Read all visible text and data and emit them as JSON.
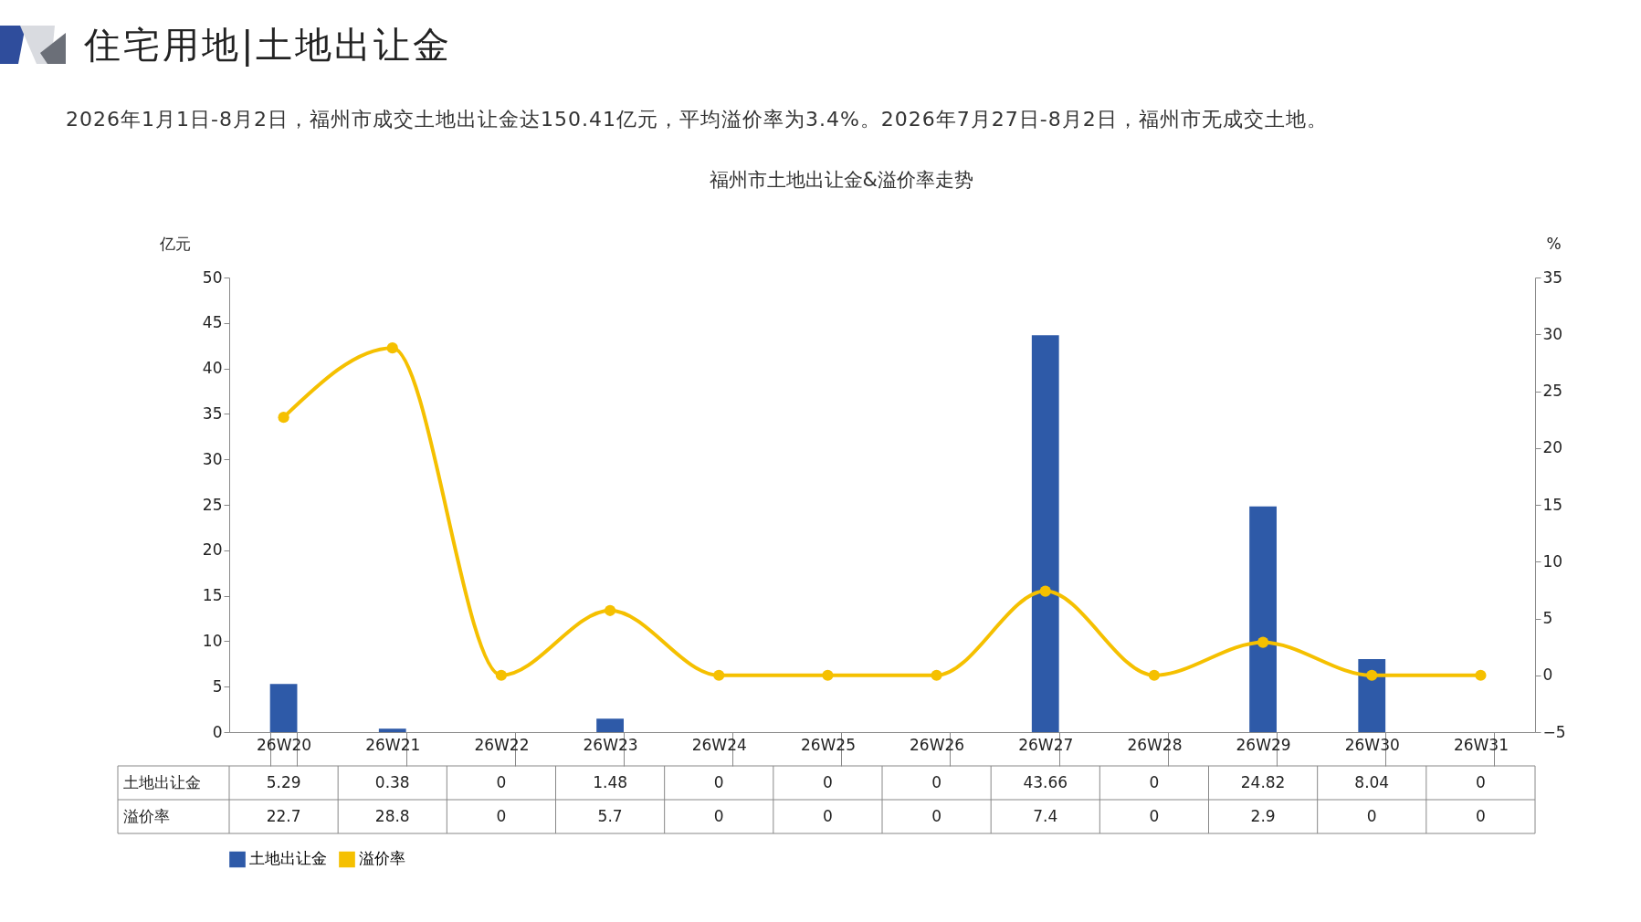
{
  "chart_data": {
    "type": "bar",
    "title": "福州市土地出让金&溢价率走势",
    "subtitle": "2026年1月1日-8月2日，福州市成交土地出让金达150.41亿元，平均溢价率为3.4%。2026年7月27日-8月2日，福州市无成交土地。",
    "annotations": [
      "住宅用地|土地出让金"
    ],
    "ylabel": "亿元",
    "y2label": "%",
    "categories": [
      "26W20",
      "26W21",
      "26W22",
      "26W23",
      "26W24",
      "26W25",
      "26W26",
      "26W27",
      "26W28",
      "26W29",
      "26W30",
      "26W31"
    ],
    "series": [
      {
        "name": "土地出让金",
        "color": "#2e5aa8",
        "values": [
          5.29,
          0.38,
          0,
          1.48,
          0,
          0,
          0,
          43.66,
          0,
          24.82,
          8.04,
          0
        ]
      },
      {
        "name": "溢价率",
        "type": "line",
        "axis": "y2",
        "color": "#f5c000",
        "values": [
          22.7,
          28.8,
          0,
          5.7,
          0,
          0,
          0,
          7.4,
          0,
          2.9,
          0,
          0
        ]
      }
    ],
    "ylim": [
      0,
      50
    ],
    "yticks": [
      0,
      5,
      10,
      15,
      20,
      25,
      30,
      35,
      40,
      45,
      50
    ],
    "y2lim": [
      -5,
      35
    ],
    "y2ticks": [
      -5,
      0,
      5,
      10,
      15,
      20,
      25,
      30,
      35
    ],
    "data_labels": true,
    "legend": "bottom",
    "marker": "circle",
    "line_style": "solid",
    "grid": false
  }
}
